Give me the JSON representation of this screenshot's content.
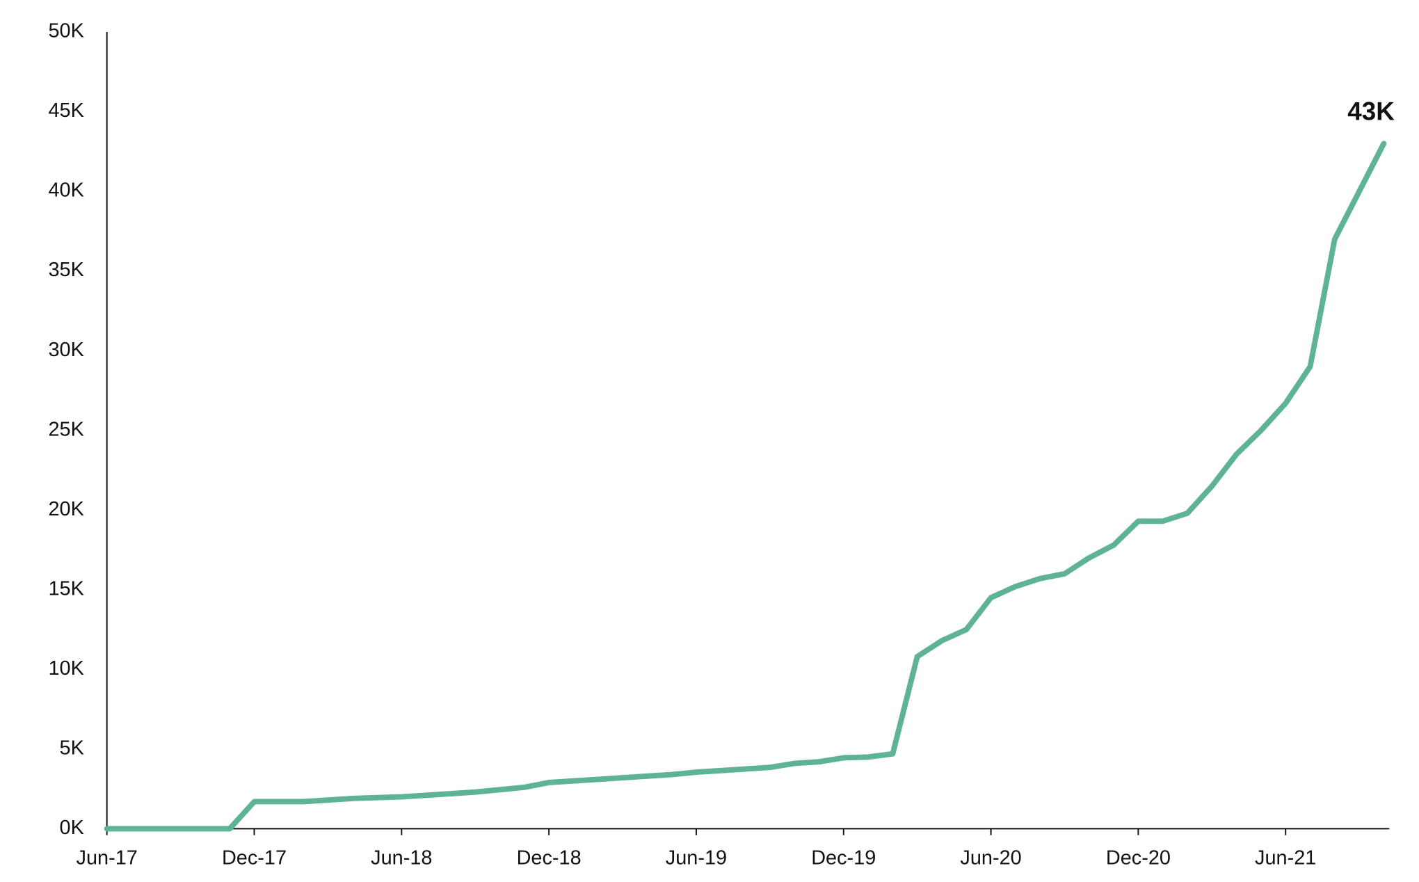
{
  "chart_data": {
    "type": "line",
    "x": [
      "2017-06",
      "2017-07",
      "2017-08",
      "2017-09",
      "2017-10",
      "2017-11",
      "2017-12",
      "2018-01",
      "2018-02",
      "2018-03",
      "2018-04",
      "2018-05",
      "2018-06",
      "2018-07",
      "2018-08",
      "2018-09",
      "2018-10",
      "2018-11",
      "2018-12",
      "2019-01",
      "2019-02",
      "2019-03",
      "2019-04",
      "2019-05",
      "2019-06",
      "2019-07",
      "2019-08",
      "2019-09",
      "2019-10",
      "2019-11",
      "2019-12",
      "2020-01",
      "2020-02",
      "2020-03",
      "2020-04",
      "2020-05",
      "2020-06",
      "2020-07",
      "2020-08",
      "2020-09",
      "2020-10",
      "2020-11",
      "2020-12",
      "2021-01",
      "2021-02",
      "2021-03",
      "2021-04",
      "2021-05",
      "2021-06",
      "2021-07",
      "2021-08",
      "2021-09",
      "2021-10"
    ],
    "series": [
      {
        "color": "#5eb394",
        "values": [
          0,
          0,
          0,
          0,
          0,
          0,
          1700,
          1700,
          1700,
          1800,
          1900,
          1950,
          2000,
          2100,
          2200,
          2300,
          2450,
          2600,
          2900,
          3000,
          3100,
          3200,
          3300,
          3400,
          3550,
          3650,
          3750,
          3850,
          4100,
          4200,
          4450,
          4500,
          4700,
          10800,
          11800,
          12500,
          14500,
          15200,
          15700,
          16000,
          17000,
          17800,
          19300,
          19300,
          19800,
          21500,
          23500,
          25000,
          26700,
          29000,
          37000,
          40000,
          43000
        ],
        "value_labels": [
          null,
          null,
          null,
          null,
          null,
          null,
          null,
          null,
          null,
          null,
          null,
          null,
          null,
          null,
          null,
          null,
          null,
          null,
          null,
          null,
          null,
          null,
          null,
          null,
          null,
          null,
          null,
          null,
          null,
          null,
          null,
          null,
          null,
          null,
          null,
          null,
          null,
          null,
          null,
          null,
          null,
          null,
          null,
          null,
          null,
          null,
          null,
          null,
          null,
          null,
          null,
          null,
          "43K"
        ]
      }
    ],
    "xlim": [
      "2017-06",
      "2021-10"
    ],
    "xticks": [
      {
        "value": "2017-06",
        "label": "Jun-17"
      },
      {
        "value": "2017-12",
        "label": "Dec-17"
      },
      {
        "value": "2018-06",
        "label": "Jun-18"
      },
      {
        "value": "2018-12",
        "label": "Dec-18"
      },
      {
        "value": "2019-06",
        "label": "Jun-19"
      },
      {
        "value": "2019-12",
        "label": "Dec-19"
      },
      {
        "value": "2020-06",
        "label": "Jun-20"
      },
      {
        "value": "2020-12",
        "label": "Dec-20"
      },
      {
        "value": "2021-06",
        "label": "Jun-21"
      }
    ],
    "ylim": [
      0,
      50000
    ],
    "yticks": [
      {
        "value": 0,
        "label": "0K"
      },
      {
        "value": 5000,
        "label": "5K"
      },
      {
        "value": 10000,
        "label": "10K"
      },
      {
        "value": 15000,
        "label": "15K"
      },
      {
        "value": 20000,
        "label": "20K"
      },
      {
        "value": 25000,
        "label": "25K"
      },
      {
        "value": 30000,
        "label": "30K"
      },
      {
        "value": 35000,
        "label": "35K"
      },
      {
        "value": 40000,
        "label": "40K"
      },
      {
        "value": 45000,
        "label": "45K"
      },
      {
        "value": 50000,
        "label": "50K"
      }
    ],
    "grid": false
  }
}
